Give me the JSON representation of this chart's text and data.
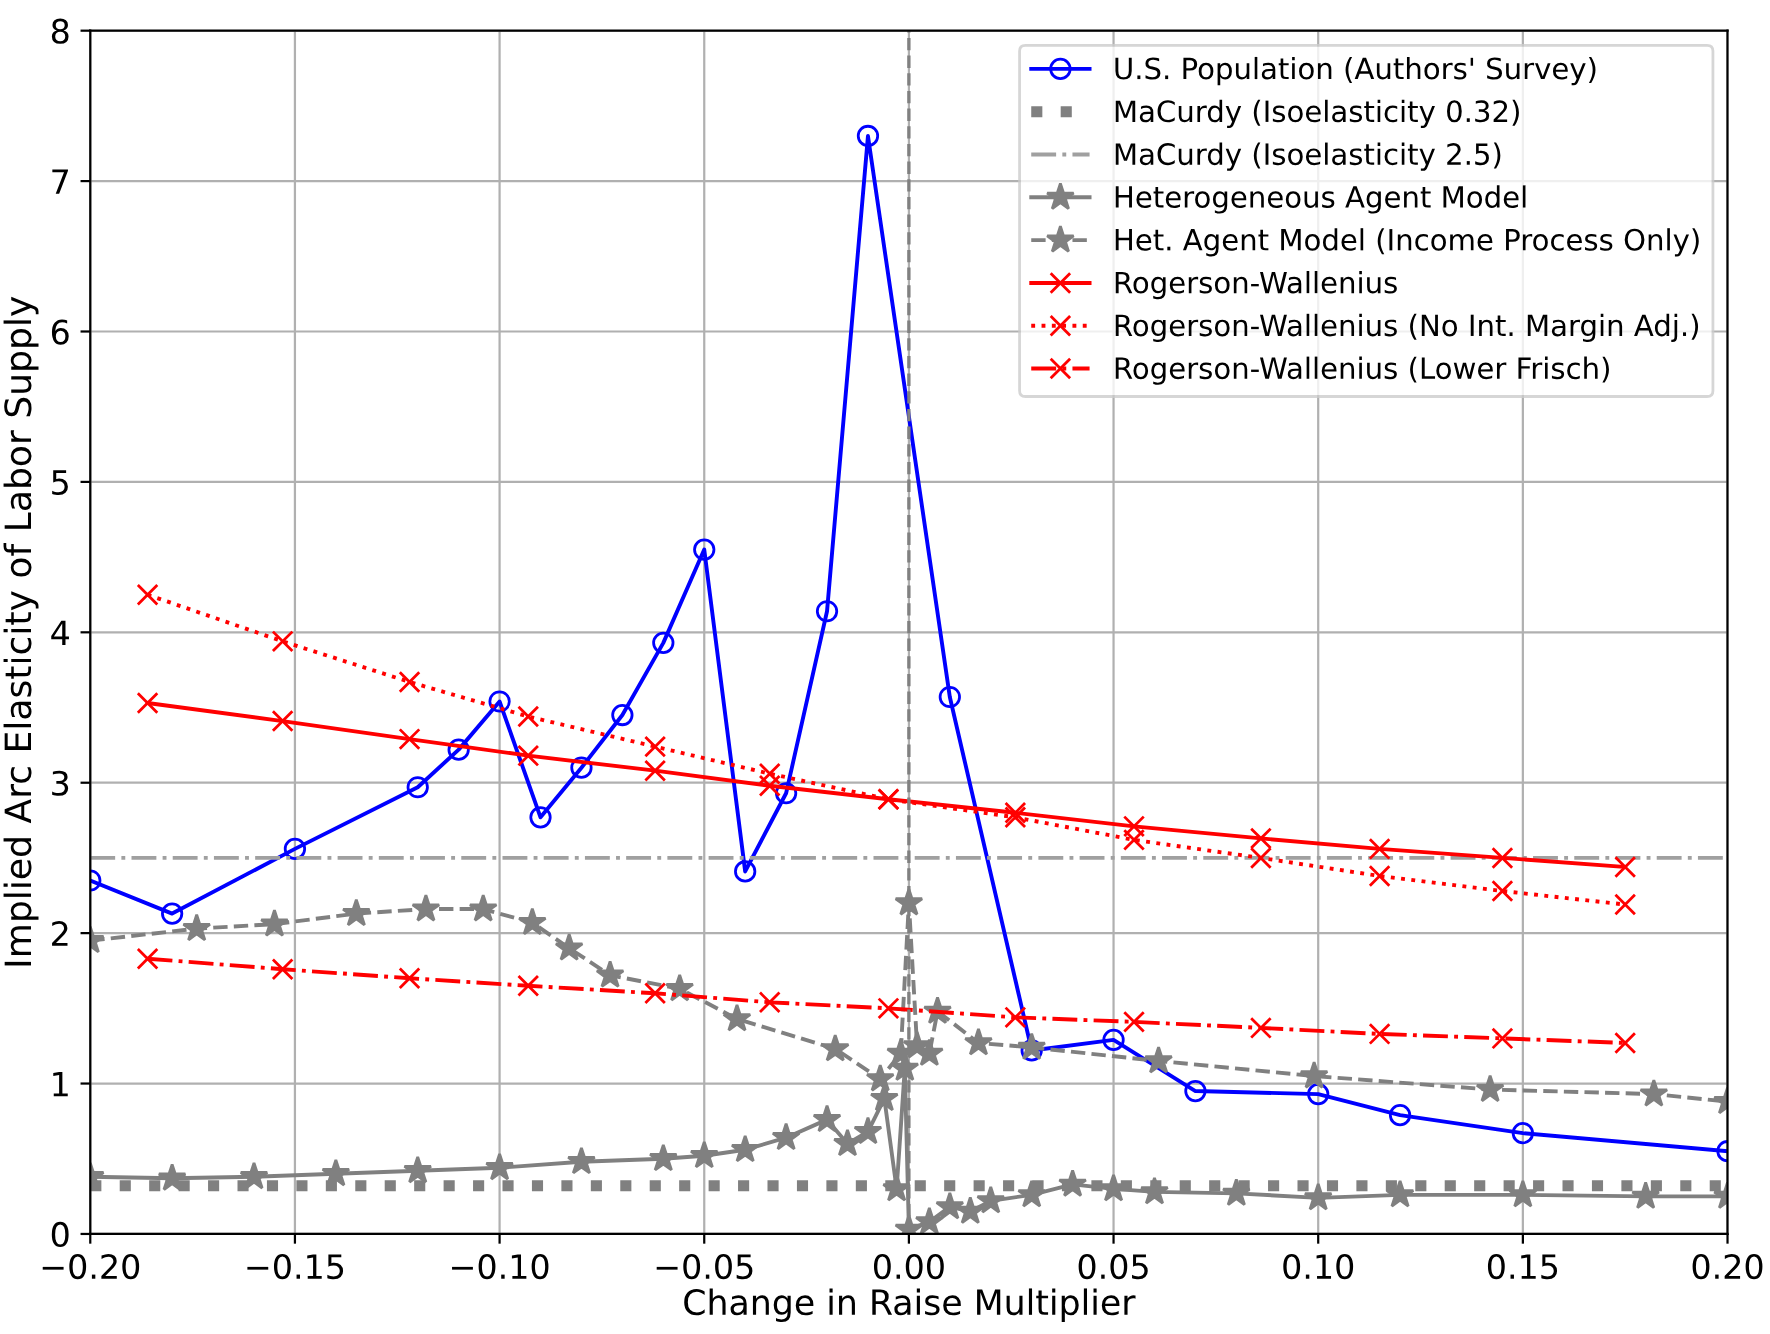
{
  "chart_data": {
    "type": "line",
    "xlabel": "Change in Raise Multiplier",
    "ylabel": "Implied Arc Elasticity of Labor Supply",
    "xlim": [
      -0.2,
      0.2
    ],
    "ylim": [
      0,
      8
    ],
    "xticks": [
      {
        "value": -0.2,
        "label": "−0.20"
      },
      {
        "value": -0.15,
        "label": "−0.15"
      },
      {
        "value": -0.1,
        "label": "−0.10"
      },
      {
        "value": -0.05,
        "label": "−0.05"
      },
      {
        "value": 0,
        "label": "0.00"
      },
      {
        "value": 0.05,
        "label": "0.05"
      },
      {
        "value": 0.1,
        "label": "0.10"
      },
      {
        "value": 0.15,
        "label": "0.15"
      },
      {
        "value": 0.2,
        "label": "0.20"
      }
    ],
    "yticks": [
      0,
      1,
      2,
      3,
      4,
      5,
      6,
      7,
      8
    ],
    "grid": true,
    "legend": "top right",
    "ref_lines": [
      {
        "axis": "x",
        "value": 0,
        "color": "#808080",
        "line_style": "dashed"
      }
    ],
    "series": [
      {
        "name": "U.S. Population (Authors' Survey)",
        "color": "#0000ff",
        "marker": "circle",
        "line_style": "solid",
        "x": [
          -0.2,
          -0.18,
          -0.15,
          -0.12,
          -0.11,
          -0.1,
          -0.09,
          -0.08,
          -0.07,
          -0.06,
          -0.05,
          -0.04,
          -0.03,
          -0.02,
          -0.01,
          0.01,
          0.03,
          0.05,
          0.07,
          0.1,
          0.12,
          0.15,
          0.2
        ],
        "values": [
          2.35,
          2.13,
          2.56,
          2.97,
          3.22,
          3.54,
          2.77,
          3.1,
          3.45,
          3.93,
          4.55,
          2.41,
          2.93,
          4.14,
          7.3,
          3.57,
          1.22,
          1.29,
          0.95,
          0.93,
          0.79,
          0.67,
          0.55
        ]
      },
      {
        "name": "MaCurdy (Isoelasticity 0.32)",
        "color": "#808080",
        "marker": "none",
        "line_style": "dotted",
        "x": [
          -0.2,
          0.2
        ],
        "values": [
          0.32,
          0.32
        ]
      },
      {
        "name": "MaCurdy (Isoelasticity 2.5)",
        "color": "#a0a0a0",
        "marker": "none",
        "line_style": "dashdot",
        "x": [
          -0.2,
          0.2
        ],
        "values": [
          2.5,
          2.5
        ]
      },
      {
        "name": "Heterogeneous Agent Model",
        "color": "#808080",
        "marker": "star",
        "line_style": "solid",
        "x": [
          -0.2,
          -0.18,
          -0.16,
          -0.14,
          -0.12,
          -0.1,
          -0.08,
          -0.06,
          -0.05,
          -0.04,
          -0.03,
          -0.02,
          -0.015,
          -0.01,
          -0.006,
          -0.003,
          -0.001,
          0.0,
          0.005,
          0.01,
          0.015,
          0.02,
          0.03,
          0.04,
          0.05,
          0.06,
          0.08,
          0.1,
          0.12,
          0.15,
          0.18,
          0.2
        ],
        "values": [
          0.38,
          0.37,
          0.38,
          0.4,
          0.42,
          0.44,
          0.48,
          0.5,
          0.52,
          0.56,
          0.64,
          0.76,
          0.6,
          0.68,
          0.9,
          0.3,
          1.1,
          0.03,
          0.08,
          0.18,
          0.15,
          0.22,
          0.26,
          0.33,
          0.3,
          0.28,
          0.27,
          0.24,
          0.26,
          0.26,
          0.25,
          0.25
        ]
      },
      {
        "name": "Het. Agent Model (Income Process Only)",
        "color": "#808080",
        "marker": "star",
        "line_style": "dashed",
        "x": [
          -0.2,
          -0.174,
          -0.155,
          -0.135,
          -0.118,
          -0.104,
          -0.092,
          -0.083,
          -0.073,
          -0.056,
          -0.042,
          -0.018,
          -0.007,
          -0.002,
          0.0,
          0.002,
          0.005,
          0.007,
          0.017,
          0.03,
          0.061,
          0.099,
          0.142,
          0.182,
          0.2
        ],
        "values": [
          1.95,
          2.03,
          2.06,
          2.13,
          2.16,
          2.16,
          2.07,
          1.9,
          1.72,
          1.63,
          1.43,
          1.23,
          1.03,
          1.2,
          2.2,
          1.25,
          1.2,
          1.48,
          1.27,
          1.24,
          1.15,
          1.05,
          0.96,
          0.93,
          0.88
        ]
      },
      {
        "name": "Rogerson-Wallenius",
        "color": "#ff0000",
        "marker": "cross",
        "line_style": "solid",
        "x": [
          -0.186,
          -0.153,
          -0.122,
          -0.093,
          -0.062,
          -0.034,
          -0.005,
          0.026,
          0.055,
          0.086,
          0.115,
          0.145,
          0.175
        ],
        "values": [
          3.53,
          3.41,
          3.29,
          3.18,
          3.08,
          2.98,
          2.89,
          2.8,
          2.71,
          2.63,
          2.56,
          2.5,
          2.44
        ]
      },
      {
        "name": "Rogerson-Wallenius (No Int. Margin Adj.)",
        "color": "#ff0000",
        "marker": "cross",
        "line_style": "dotted",
        "x": [
          -0.186,
          -0.153,
          -0.122,
          -0.093,
          -0.062,
          -0.034,
          -0.005,
          0.026,
          0.055,
          0.086,
          0.115,
          0.145,
          0.175
        ],
        "values": [
          4.25,
          3.94,
          3.67,
          3.44,
          3.24,
          3.06,
          2.89,
          2.77,
          2.62,
          2.5,
          2.38,
          2.28,
          2.19
        ]
      },
      {
        "name": "Rogerson-Wallenius (Lower Frisch)",
        "color": "#ff0000",
        "marker": "cross",
        "line_style": "dashdot",
        "x": [
          -0.186,
          -0.153,
          -0.122,
          -0.093,
          -0.062,
          -0.034,
          -0.005,
          0.026,
          0.055,
          0.086,
          0.115,
          0.145,
          0.175
        ],
        "values": [
          1.83,
          1.76,
          1.7,
          1.65,
          1.6,
          1.54,
          1.5,
          1.44,
          1.41,
          1.37,
          1.33,
          1.3,
          1.27
        ]
      }
    ]
  }
}
